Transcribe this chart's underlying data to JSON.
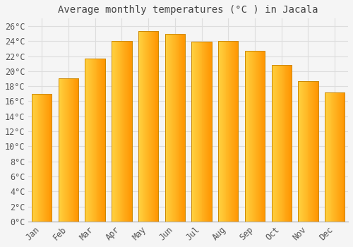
{
  "title": "Average monthly temperatures (°C ) in Jacala",
  "months": [
    "Jan",
    "Feb",
    "Mar",
    "Apr",
    "May",
    "Jun",
    "Jul",
    "Aug",
    "Sep",
    "Oct",
    "Nov",
    "Dec"
  ],
  "values": [
    17.0,
    19.0,
    21.7,
    24.0,
    25.3,
    25.0,
    23.9,
    24.0,
    22.7,
    20.8,
    18.7,
    17.2
  ],
  "bar_color_main": "#FFA500",
  "bar_color_light": "#FFD050",
  "bar_edge_color": "#CC8800",
  "background_color": "#f5f5f5",
  "plot_bg_color": "#f5f5f5",
  "grid_color": "#dddddd",
  "ylim": [
    0,
    27
  ],
  "ytick_step": 2,
  "title_fontsize": 10,
  "tick_fontsize": 8.5,
  "label_color": "#555555",
  "title_color": "#444444"
}
